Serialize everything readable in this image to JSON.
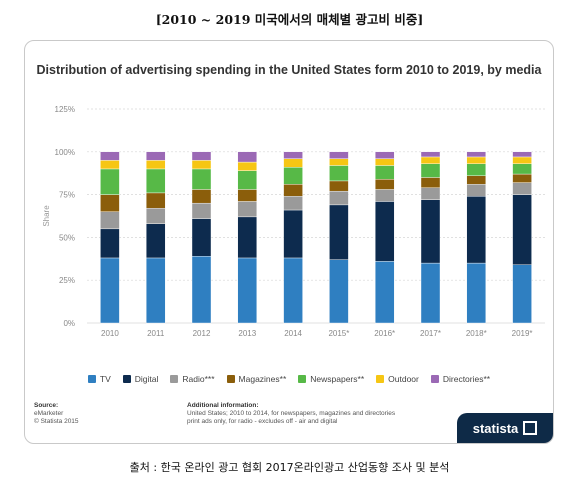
{
  "header": {
    "title": "[2010 ~ 2019 미국에서의 매체별 광고비 비중]"
  },
  "footer": {
    "caption": "출처 : 한국 온라인 광고 협회 2017온라인광고 산업동향 조사 및 분석"
  },
  "statista": {
    "source_label": "Source:",
    "source_lines": [
      "eMarketer",
      "© Statista 2015"
    ],
    "info_label": "Additional information:",
    "info_lines": [
      "United States; 2010 to 2014, for newspapers, magazines and directories",
      "print ads only, for radio - excludes off - air and digital"
    ],
    "brand": "statista"
  },
  "colors": {
    "TV": "#2f7fc1",
    "Digital": "#0d2b4e",
    "Radio***": "#9a9a9a",
    "Magazines**": "#8b5e0b",
    "Newspapers**": "#57b947",
    "Outdoor": "#f6c614",
    "Directories**": "#9b69b5"
  },
  "chart_data": {
    "type": "bar",
    "stacked": true,
    "title": "Distribution of advertising spending in the United States form 2010 to 2019, by media",
    "ylabel": "Share",
    "xlabel": "",
    "ylim": [
      0,
      125
    ],
    "yticks": [
      "0%",
      "25%",
      "50%",
      "75%",
      "100%",
      "125%"
    ],
    "grid": true,
    "legend_position": "bottom",
    "categories": [
      "2010",
      "2011",
      "2012",
      "2013",
      "2014",
      "2015*",
      "2016*",
      "2017*",
      "2018*",
      "2019*"
    ],
    "series": [
      {
        "name": "TV",
        "values": [
          38,
          38,
          39,
          38,
          38,
          37,
          36,
          35,
          35,
          34
        ]
      },
      {
        "name": "Digital",
        "values": [
          17,
          20,
          22,
          24,
          28,
          32,
          35,
          37,
          39,
          41
        ]
      },
      {
        "name": "Radio***",
        "values": [
          10,
          9,
          9,
          9,
          8,
          8,
          7,
          7,
          7,
          7
        ]
      },
      {
        "name": "Magazines**",
        "values": [
          10,
          9,
          8,
          7,
          7,
          6,
          6,
          6,
          5,
          5
        ]
      },
      {
        "name": "Newspapers**",
        "values": [
          15,
          14,
          12,
          11,
          10,
          9,
          8,
          8,
          7,
          6
        ]
      },
      {
        "name": "Outdoor",
        "values": [
          5,
          5,
          5,
          5,
          5,
          4,
          4,
          4,
          4,
          4
        ]
      },
      {
        "name": "Directories**",
        "values": [
          5,
          5,
          5,
          6,
          4,
          4,
          4,
          3,
          3,
          3
        ]
      }
    ]
  }
}
